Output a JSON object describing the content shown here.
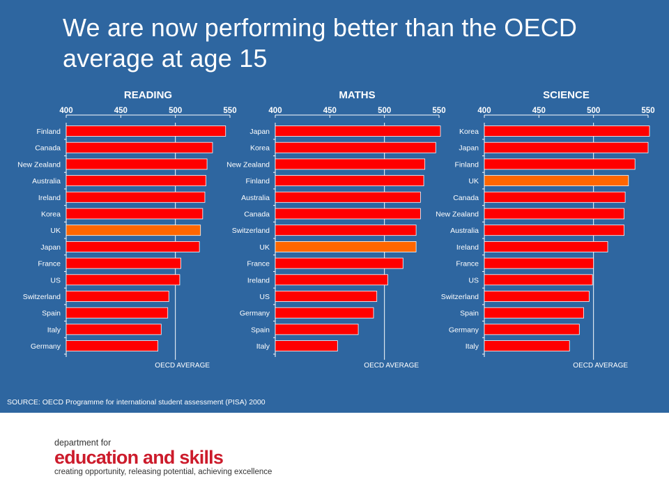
{
  "title": "We are now performing better than the OECD average at age 15",
  "source": "SOURCE: OECD Programme for international student assessment (PISA) 2000",
  "logo": {
    "line1": "department for",
    "line2": "education and skills",
    "line3": "creating opportunity, releasing potential, achieving excellence"
  },
  "colors": {
    "background": "#2e66a0",
    "bar": "#ff0000",
    "highlight": "#ff6600",
    "axis_text": "#ffffff",
    "label_text": "#ffffff"
  },
  "chart_data": [
    {
      "type": "bar",
      "orientation": "horizontal",
      "title": "READING",
      "categories": [
        "Finland",
        "Canada",
        "New Zealand",
        "Australia",
        "Ireland",
        "Korea",
        "UK",
        "Japan",
        "France",
        "US",
        "Switzerland",
        "Spain",
        "Italy",
        "Germany"
      ],
      "values": [
        546,
        534,
        529,
        528,
        527,
        525,
        523,
        522,
        505,
        504,
        494,
        493,
        487,
        484
      ],
      "highlight": "UK",
      "xlim": [
        400,
        550
      ],
      "ticks": [
        400,
        450,
        500,
        550
      ],
      "reference_line": {
        "value": 500,
        "label": "OECD AVERAGE"
      }
    },
    {
      "type": "bar",
      "orientation": "horizontal",
      "title": "MATHS",
      "categories": [
        "Japan",
        "Korea",
        "New Zealand",
        "Finland",
        "Australia",
        "Canada",
        "Switzerland",
        "UK",
        "France",
        "Ireland",
        "US",
        "Germany",
        "Spain",
        "Italy"
      ],
      "values": [
        557,
        547,
        537,
        536,
        533,
        533,
        529,
        529,
        517,
        503,
        493,
        490,
        476,
        457
      ],
      "highlight": "UK",
      "xlim": [
        400,
        550
      ],
      "ticks": [
        400,
        450,
        500,
        550
      ],
      "reference_line": {
        "value": 500,
        "label": "OECD AVERAGE"
      }
    },
    {
      "type": "bar",
      "orientation": "horizontal",
      "title": "SCIENCE",
      "categories": [
        "Korea",
        "Japan",
        "Finland",
        "UK",
        "Canada",
        "New Zealand",
        "Australia",
        "Ireland",
        "France",
        "US",
        "Switzerland",
        "Spain",
        "Germany",
        "Italy"
      ],
      "values": [
        552,
        550,
        538,
        532,
        529,
        528,
        528,
        513,
        500,
        499,
        496,
        491,
        487,
        478
      ],
      "highlight": "UK",
      "xlim": [
        400,
        550
      ],
      "ticks": [
        400,
        450,
        500,
        550
      ],
      "reference_line": {
        "value": 500,
        "label": "OECD AVERAGE"
      }
    }
  ]
}
